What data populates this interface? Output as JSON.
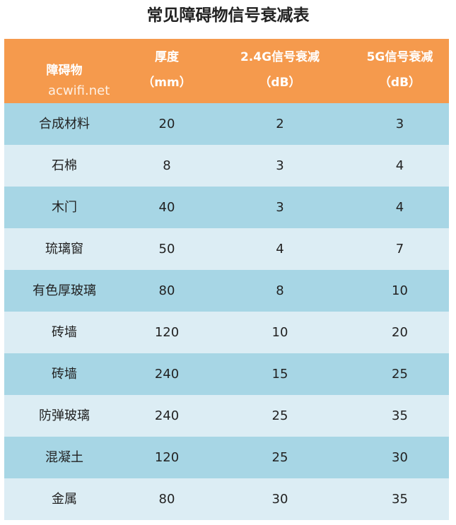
{
  "title": "常见障碍物信号衰减表",
  "watermark": "acwifi.net",
  "header": {
    "obstacle": "障碍物",
    "thickness_line1": "厚度",
    "thickness_line2": "（mm）",
    "g24_line1": "2.4G信号衰减",
    "g24_line2": "（dB）",
    "g5_line1": "5G信号衰减",
    "g5_line2": "（dB）"
  },
  "rows": [
    {
      "obstacle": "合成材料",
      "thickness": "20",
      "g24": "2",
      "g5": "3"
    },
    {
      "obstacle": "石棉",
      "thickness": "8",
      "g24": "3",
      "g5": "4"
    },
    {
      "obstacle": "木门",
      "thickness": "40",
      "g24": "3",
      "g5": "4"
    },
    {
      "obstacle": "琉璃窗",
      "thickness": "50",
      "g24": "4",
      "g5": "7"
    },
    {
      "obstacle": "有色厚玻璃",
      "thickness": "80",
      "g24": "8",
      "g5": "10"
    },
    {
      "obstacle": "砖墙",
      "thickness": "120",
      "g24": "10",
      "g5": "20"
    },
    {
      "obstacle": "砖墙",
      "thickness": "240",
      "g24": "15",
      "g5": "25"
    },
    {
      "obstacle": "防弹玻璃",
      "thickness": "240",
      "g24": "25",
      "g5": "35"
    },
    {
      "obstacle": "混凝土",
      "thickness": "120",
      "g24": "25",
      "g5": "30"
    },
    {
      "obstacle": "金属",
      "thickness": "80",
      "g24": "30",
      "g5": "35"
    }
  ],
  "colors": {
    "header_bg": "#f59a4d",
    "row_odd_bg": "#a7d6e5",
    "row_even_bg": "#dcedf4"
  }
}
